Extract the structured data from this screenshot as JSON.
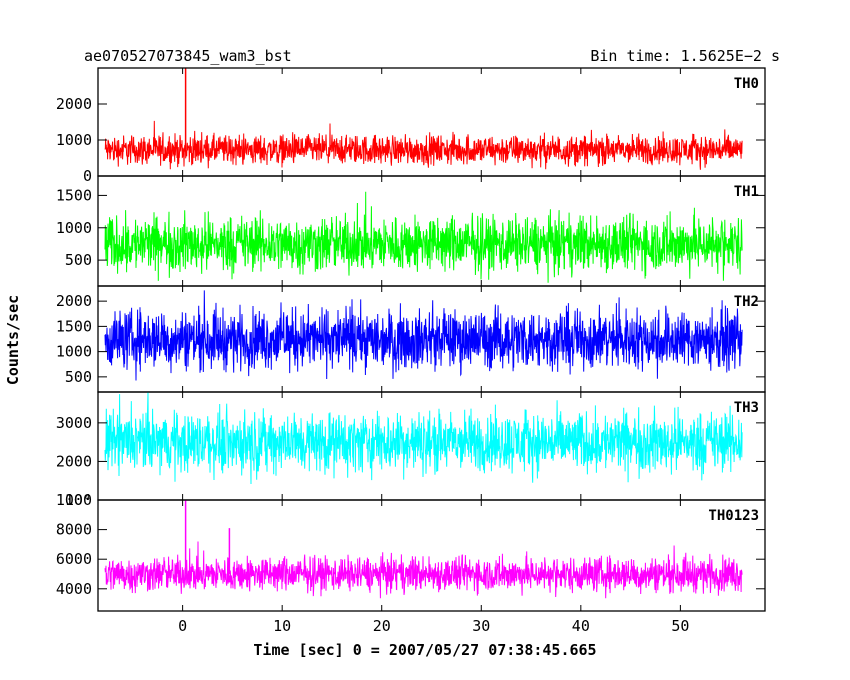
{
  "chart_data": {
    "type": "line",
    "title_left": "ae070527073845_wam3_bst",
    "title_right": "Bin time: 1.5625E−2 s",
    "xlabel": "Time [sec] 0 = 2007/05/27 07:38:45.665",
    "ylabel": "Counts/sec",
    "xlim": [
      -8.5,
      58.5
    ],
    "x_ticks": [
      0,
      10,
      20,
      30,
      40,
      50
    ],
    "x_tick_labels": [
      "0",
      "10",
      "20",
      "30",
      "40",
      "50"
    ],
    "data_x_range": [
      -7.8,
      56.2
    ],
    "grid": false,
    "panels": [
      {
        "label": "TH0",
        "color": "#ff0000",
        "ylim": [
          0,
          3000
        ],
        "y_ticks": [
          0,
          1000,
          2000
        ],
        "y_tick_labels": [
          "0",
          "1000",
          "2000"
        ],
        "typical_range": [
          200,
          1250
        ],
        "spikes": [
          {
            "x": 0.3,
            "y": 3000
          }
        ]
      },
      {
        "label": "TH1",
        "color": "#00ff00",
        "ylim": [
          100,
          1800
        ],
        "y_ticks": [
          500,
          1000,
          1500
        ],
        "y_tick_labels": [
          "500",
          "1000",
          "1500"
        ],
        "typical_range": [
          200,
          1300
        ],
        "spikes": []
      },
      {
        "label": "TH2",
        "color": "#0000ff",
        "ylim": [
          200,
          2300
        ],
        "y_ticks": [
          500,
          1000,
          1500,
          2000
        ],
        "y_tick_labels": [
          "500",
          "1000",
          "1500",
          "2000"
        ],
        "typical_range": [
          500,
          2000
        ],
        "spikes": []
      },
      {
        "label": "TH3",
        "color": "#00ffff",
        "ylim": [
          1000,
          3800
        ],
        "y_ticks": [
          1000,
          2000,
          3000
        ],
        "y_tick_labels": [
          "1000",
          "2000",
          "3000"
        ],
        "typical_range": [
          1500,
          3500
        ],
        "spikes": []
      },
      {
        "label": "TH0123",
        "color": "#ff00ff",
        "ylim": [
          2500,
          10000
        ],
        "y_ticks": [
          4000,
          6000,
          8000,
          10000
        ],
        "y_tick_labels": [
          "4000",
          "6000",
          "8000",
          "10⁴"
        ],
        "typical_range": [
          3500,
          6500
        ],
        "spikes": [
          {
            "x": 0.3,
            "y": 10000
          },
          {
            "x": 4.7,
            "y": 8100
          }
        ]
      }
    ]
  }
}
